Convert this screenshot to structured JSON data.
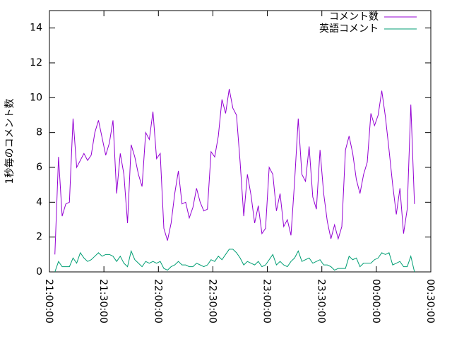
{
  "chart_data": {
    "type": "line",
    "ylabel": "1秒毎のコメント数",
    "legend": "upper right",
    "ylim": [
      0,
      15
    ],
    "yticks": [
      0,
      2,
      4,
      6,
      8,
      10,
      12,
      14
    ],
    "xlim": [
      "21:00:00",
      "00:30:00"
    ],
    "xticks": [
      "21:00:00",
      "21:30:00",
      "22:00:00",
      "22:30:00",
      "23:00:00",
      "23:30:00",
      "00:00:00",
      "00:30:00"
    ],
    "x": [
      "21:03:00",
      "21:05:00",
      "21:07:00",
      "21:09:00",
      "21:11:00",
      "21:13:00",
      "21:15:00",
      "21:17:00",
      "21:19:00",
      "21:21:00",
      "21:23:00",
      "21:25:00",
      "21:27:00",
      "21:29:00",
      "21:31:00",
      "21:33:00",
      "21:35:00",
      "21:37:00",
      "21:39:00",
      "21:41:00",
      "21:43:00",
      "21:45:00",
      "21:47:00",
      "21:49:00",
      "21:51:00",
      "21:53:00",
      "21:55:00",
      "21:57:00",
      "21:59:00",
      "22:01:00",
      "22:03:00",
      "22:05:00",
      "22:07:00",
      "22:09:00",
      "22:11:00",
      "22:13:00",
      "22:15:00",
      "22:17:00",
      "22:19:00",
      "22:21:00",
      "22:23:00",
      "22:25:00",
      "22:27:00",
      "22:29:00",
      "22:31:00",
      "22:33:00",
      "22:35:00",
      "22:37:00",
      "22:39:00",
      "22:41:00",
      "22:43:00",
      "22:45:00",
      "22:47:00",
      "22:49:00",
      "22:51:00",
      "22:53:00",
      "22:55:00",
      "22:57:00",
      "22:59:00",
      "23:01:00",
      "23:03:00",
      "23:05:00",
      "23:07:00",
      "23:09:00",
      "23:11:00",
      "23:13:00",
      "23:15:00",
      "23:17:00",
      "23:19:00",
      "23:21:00",
      "23:23:00",
      "23:25:00",
      "23:27:00",
      "23:29:00",
      "23:31:00",
      "23:33:00",
      "23:35:00",
      "23:37:00",
      "23:39:00",
      "23:41:00",
      "23:43:00",
      "23:45:00",
      "23:47:00",
      "23:49:00",
      "23:51:00",
      "23:53:00",
      "23:55:00",
      "23:57:00",
      "23:59:00",
      "00:01:00",
      "00:03:00",
      "00:05:00",
      "00:07:00",
      "00:09:00",
      "00:11:00",
      "00:13:00",
      "00:15:00",
      "00:17:00",
      "00:19:00",
      "00:21:00"
    ],
    "series": [
      {
        "name": "コメント数",
        "color": "#9400d3",
        "values": [
          1.0,
          6.6,
          3.2,
          3.9,
          4.0,
          8.8,
          6.0,
          6.4,
          6.8,
          6.4,
          6.7,
          8.0,
          8.7,
          7.7,
          6.7,
          7.4,
          8.7,
          4.5,
          6.8,
          5.6,
          2.8,
          7.3,
          6.6,
          5.6,
          4.9,
          8.0,
          7.6,
          9.2,
          6.5,
          6.8,
          2.5,
          1.8,
          2.8,
          4.5,
          5.8,
          3.9,
          4.0,
          3.1,
          3.7,
          4.8,
          4.0,
          3.5,
          3.6,
          6.9,
          6.6,
          7.8,
          9.9,
          9.1,
          10.5,
          9.4,
          9.0,
          6.3,
          3.2,
          5.6,
          4.4,
          2.8,
          3.8,
          2.2,
          2.5,
          6.0,
          5.6,
          3.5,
          4.5,
          2.6,
          3.0,
          2.1,
          5.2,
          8.8,
          5.6,
          5.2,
          7.2,
          4.3,
          3.6,
          7.0,
          4.5,
          2.9,
          1.9,
          2.7,
          1.9,
          2.6,
          7.0,
          7.8,
          6.8,
          5.3,
          4.5,
          5.6,
          6.3,
          9.1,
          8.4,
          9.0,
          10.4,
          8.9,
          7.0,
          5.0,
          3.3,
          4.8,
          2.2,
          3.6,
          9.6,
          3.9
        ]
      },
      {
        "name": "英語コメント",
        "color": "#009e73",
        "values": [
          0,
          0.6,
          0.3,
          0.3,
          0.3,
          0.8,
          0.5,
          1.1,
          0.8,
          0.6,
          0.7,
          0.9,
          1.1,
          0.9,
          1.0,
          1.0,
          0.9,
          0.6,
          0.9,
          0.5,
          0.3,
          1.2,
          0.7,
          0.5,
          0.3,
          0.6,
          0.5,
          0.6,
          0.5,
          0.6,
          0.2,
          0.1,
          0.3,
          0.4,
          0.6,
          0.4,
          0.4,
          0.3,
          0.3,
          0.5,
          0.4,
          0.3,
          0.4,
          0.7,
          0.6,
          0.9,
          0.7,
          1.0,
          1.3,
          1.3,
          1.1,
          0.8,
          0.4,
          0.6,
          0.5,
          0.4,
          0.6,
          0.3,
          0.4,
          0.7,
          1.0,
          0.4,
          0.6,
          0.4,
          0.3,
          0.6,
          0.8,
          1.2,
          0.6,
          0.7,
          0.8,
          0.5,
          0.6,
          0.7,
          0.4,
          0.4,
          0.3,
          0.1,
          0.2,
          0.2,
          0.2,
          0.9,
          0.7,
          0.8,
          0.3,
          0.5,
          0.5,
          0.5,
          0.7,
          0.8,
          1.1,
          1.0,
          1.1,
          0.4,
          0.5,
          0.6,
          0.3,
          0.3,
          0.9,
          0.0
        ]
      }
    ]
  }
}
